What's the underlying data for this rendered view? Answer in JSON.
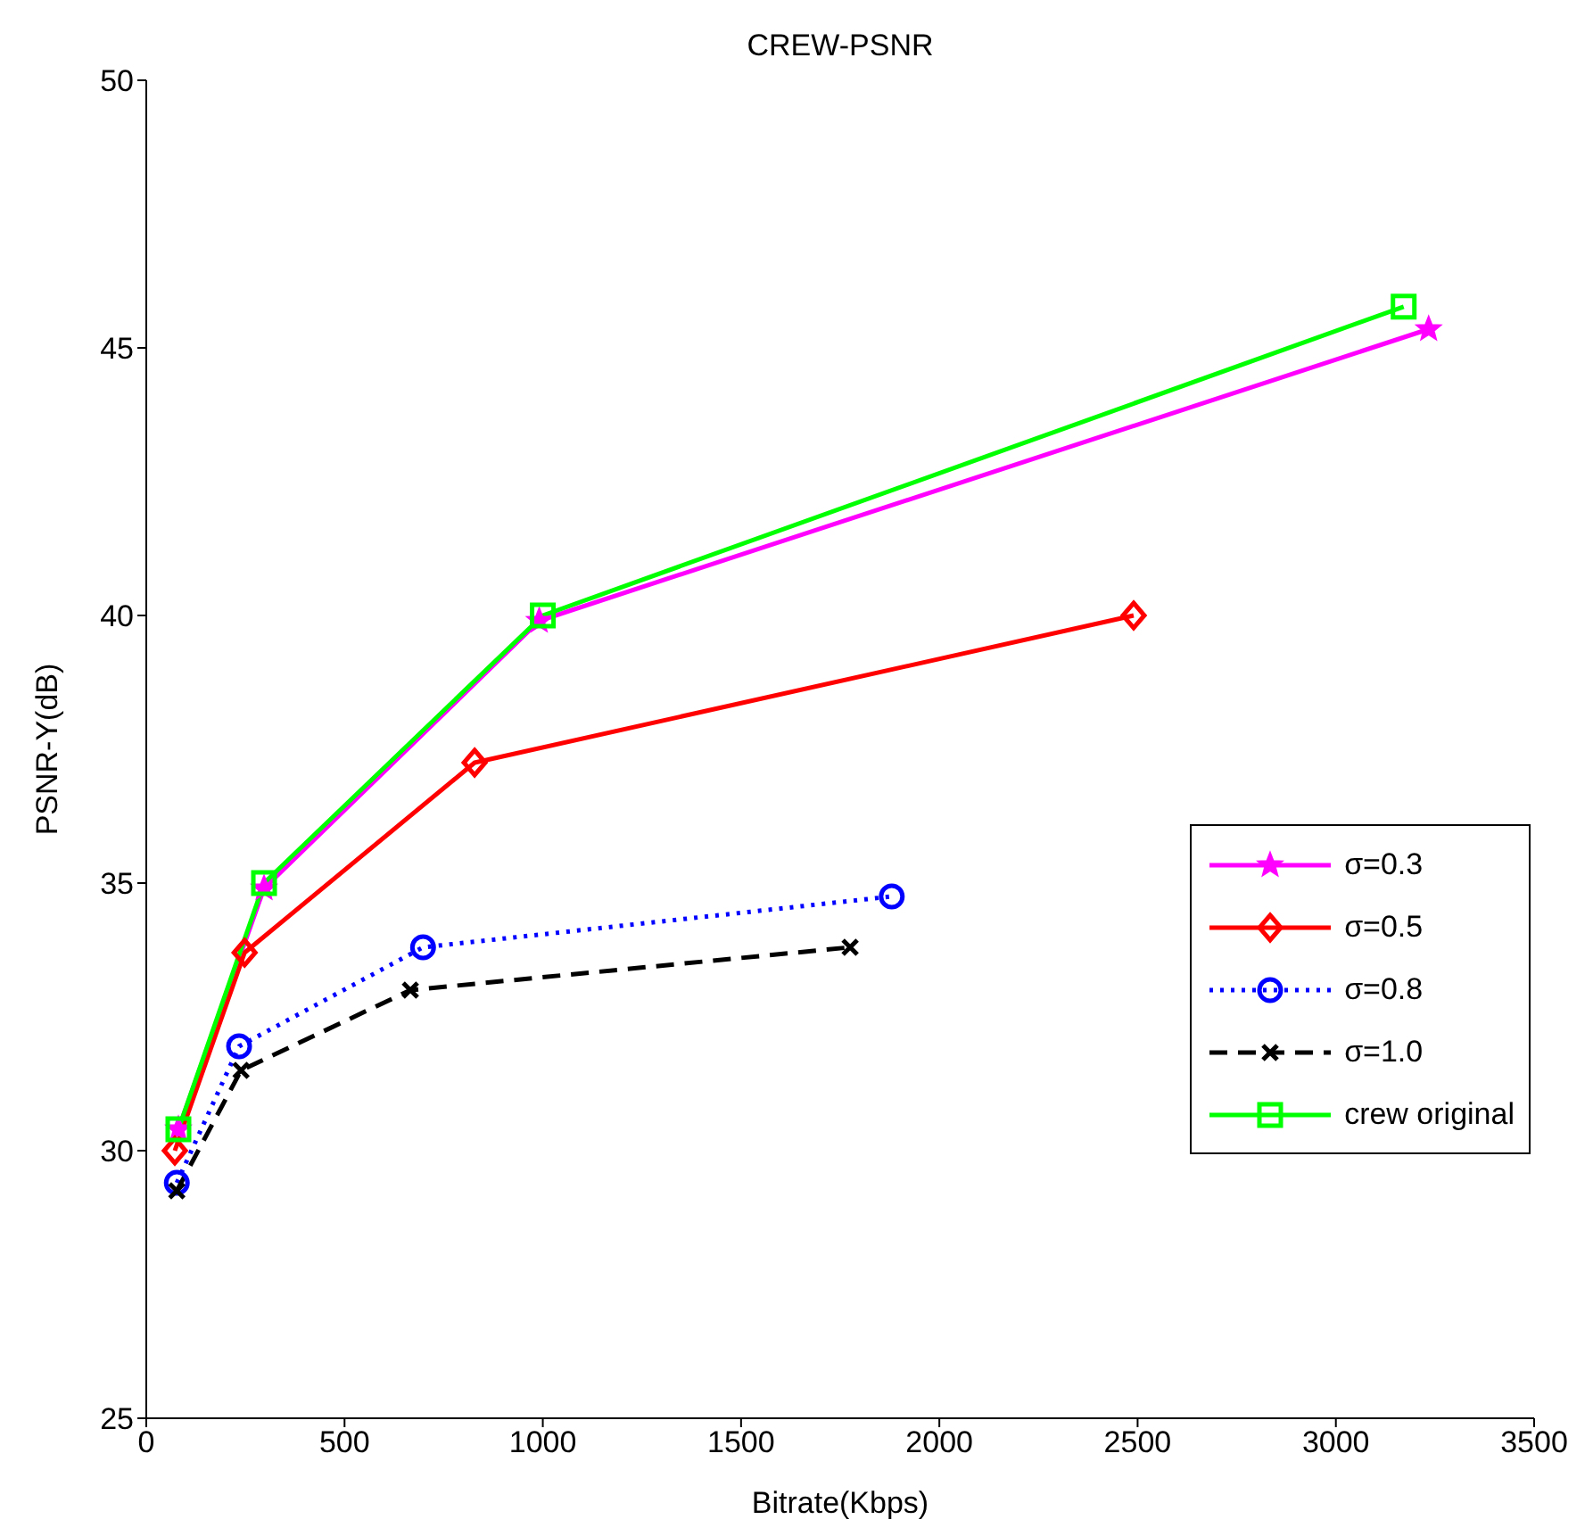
{
  "chart_data": {
    "type": "line",
    "title": "CREW-PSNR",
    "xlabel": "Bitrate(Kbps)",
    "ylabel": "PSNR-Y(dB)",
    "xlim": [
      0,
      3500
    ],
    "xticks": [
      0,
      500,
      1000,
      1500,
      2000,
      2500,
      3000,
      3500
    ],
    "ylim": [
      25,
      50
    ],
    "yticks": [
      25,
      30,
      35,
      40,
      45,
      50
    ],
    "grid": false,
    "legend": "right",
    "series": [
      {
        "name": "σ=0.3",
        "color": "#ff00ff",
        "marker": "star",
        "line_style": "solid",
        "x": [
          81,
          297,
          991,
          3234
        ],
        "values": [
          30.4,
          34.9,
          39.9,
          45.35
        ]
      },
      {
        "name": "σ=0.5",
        "color": "#ff0000",
        "marker": "diamond",
        "line_style": "solid",
        "x": [
          72,
          248,
          828,
          2490
        ],
        "values": [
          30.0,
          33.7,
          37.25,
          40.0
        ]
      },
      {
        "name": "σ=0.8",
        "color": "#0000ff",
        "marker": "circle",
        "line_style": "dotted",
        "x": [
          77,
          234,
          698,
          1880
        ],
        "values": [
          29.4,
          31.95,
          33.8,
          34.75
        ]
      },
      {
        "name": "σ=1.0",
        "color": "#000000",
        "marker": "cross",
        "line_style": "dashed",
        "x": [
          77,
          239,
          666,
          1775
        ],
        "values": [
          29.25,
          31.5,
          33.0,
          33.8
        ]
      },
      {
        "name": "crew original",
        "color": "#00ff00",
        "marker": "square",
        "line_style": "solid",
        "x": [
          81,
          297,
          1000,
          3171
        ],
        "values": [
          30.4,
          35.0,
          40.0,
          45.77
        ]
      }
    ]
  }
}
